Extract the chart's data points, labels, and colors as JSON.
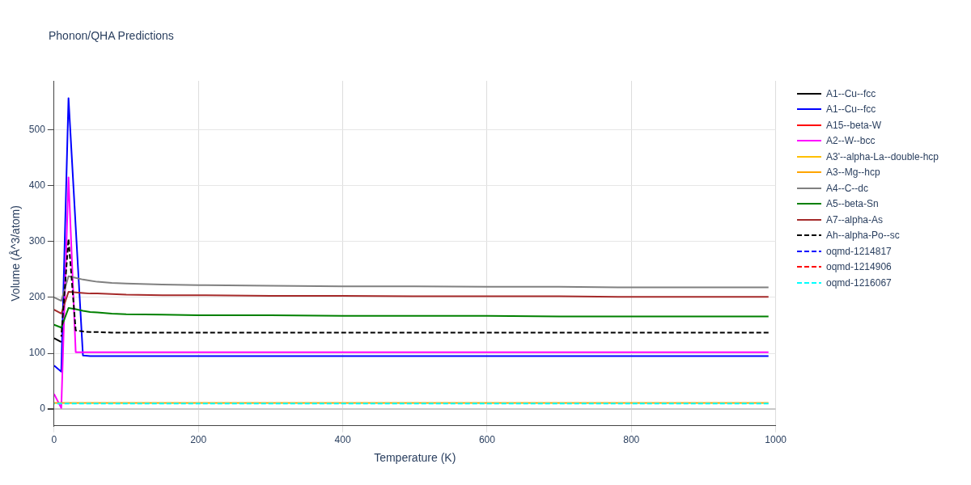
{
  "chart_data": {
    "type": "line",
    "title": "Phonon/QHA Predictions",
    "xlabel": "Temperature (K)",
    "ylabel": "Volume (Å^3/atom)",
    "x": [
      0,
      10,
      20,
      30,
      40,
      50,
      60,
      80,
      100,
      150,
      200,
      300,
      400,
      500,
      600,
      700,
      800,
      900,
      990
    ],
    "xlim": [
      0,
      1000
    ],
    "xticks": [
      0,
      200,
      400,
      600,
      800,
      1000
    ],
    "ylim": [
      -30,
      588
    ],
    "yticks": [
      0,
      100,
      200,
      300,
      400,
      500
    ],
    "grid": true,
    "legend": "top right",
    "marker": "none",
    "series": [
      {
        "name": "A1--Cu--fcc",
        "color": "#000000",
        "line_style": "solid",
        "x": [
          0,
          10
        ],
        "values": [
          127,
          120
        ]
      },
      {
        "name": "A1--Cu--fcc",
        "color": "#0000ff",
        "line_style": "solid",
        "values": [
          78,
          67,
          557,
          326,
          96,
          95,
          95,
          95,
          95,
          95,
          95,
          95,
          95,
          95,
          95,
          95,
          95,
          95,
          95
        ]
      },
      {
        "name": "A15--beta-W",
        "color": "#ff0000",
        "line_style": "solid",
        "values": [
          null,
          null,
          null,
          null,
          null,
          null,
          null,
          null,
          null,
          null,
          null,
          null,
          null,
          null,
          null,
          null,
          null,
          null,
          null
        ]
      },
      {
        "name": "A2--W--bcc",
        "color": "#ff00ff",
        "line_style": "solid",
        "values": [
          27,
          2,
          415,
          102,
          102,
          102,
          102,
          102,
          102,
          102,
          102,
          102,
          102,
          102,
          102,
          102,
          102,
          102,
          102
        ]
      },
      {
        "name": "A3'--alpha-La--double-hcp",
        "color": "#ffc000",
        "line_style": "solid",
        "values": [
          null,
          null,
          null,
          null,
          null,
          null,
          null,
          null,
          null,
          null,
          null,
          null,
          null,
          null,
          null,
          null,
          null,
          null,
          null
        ]
      },
      {
        "name": "A3--Mg--hcp",
        "color": "#ffa500",
        "line_style": "solid",
        "values": [
          11,
          11,
          11,
          11,
          11,
          11,
          11,
          11,
          11,
          11,
          11,
          11,
          11,
          11,
          11,
          11,
          11,
          11,
          11
        ]
      },
      {
        "name": "A4--C--dc",
        "color": "#808080",
        "line_style": "solid",
        "values": [
          200,
          194,
          238,
          235,
          232,
          230,
          228,
          226,
          225,
          223,
          222,
          221,
          220,
          220,
          219,
          219,
          218,
          218,
          218
        ]
      },
      {
        "name": "A5--beta-Sn",
        "color": "#008000",
        "line_style": "solid",
        "values": [
          151,
          146,
          181,
          179,
          176,
          174,
          173,
          171,
          170,
          169,
          168,
          168,
          167,
          167,
          167,
          166,
          166,
          166,
          166
        ]
      },
      {
        "name": "A7--alpha-As",
        "color": "#a52a2a",
        "line_style": "solid",
        "values": [
          178,
          171,
          210,
          209,
          208,
          207,
          207,
          206,
          205,
          204,
          204,
          203,
          203,
          202,
          202,
          202,
          201,
          201,
          201
        ]
      },
      {
        "name": "Ah--alpha-Po--sc",
        "color": "#000000",
        "line_style": "dashed",
        "x": [
          10,
          20,
          30,
          40,
          50,
          60,
          80,
          100,
          150,
          200,
          300,
          400,
          500,
          600,
          700,
          800,
          900,
          990
        ],
        "values": [
          130,
          305,
          141,
          139,
          138,
          138,
          137,
          137,
          137,
          137,
          137,
          137,
          137,
          137,
          137,
          137,
          137,
          137
        ]
      },
      {
        "name": "oqmd-1214817",
        "color": "#0000ff",
        "line_style": "dashed",
        "values": [
          null,
          null,
          null,
          null,
          null,
          null,
          null,
          null,
          null,
          null,
          null,
          null,
          null,
          null,
          null,
          null,
          null,
          null,
          null
        ]
      },
      {
        "name": "oqmd-1214906",
        "color": "#ff0000",
        "line_style": "dashed",
        "values": [
          null,
          null,
          null,
          null,
          null,
          null,
          null,
          null,
          null,
          null,
          null,
          null,
          null,
          null,
          null,
          null,
          null,
          null,
          null
        ]
      },
      {
        "name": "oqmd-1216067",
        "color": "#00ffff",
        "line_style": "dashed",
        "values": [
          10,
          10,
          10,
          10,
          10,
          10,
          10,
          10,
          10,
          10,
          10,
          10,
          10,
          10,
          10,
          10,
          10,
          10,
          10
        ]
      }
    ]
  }
}
